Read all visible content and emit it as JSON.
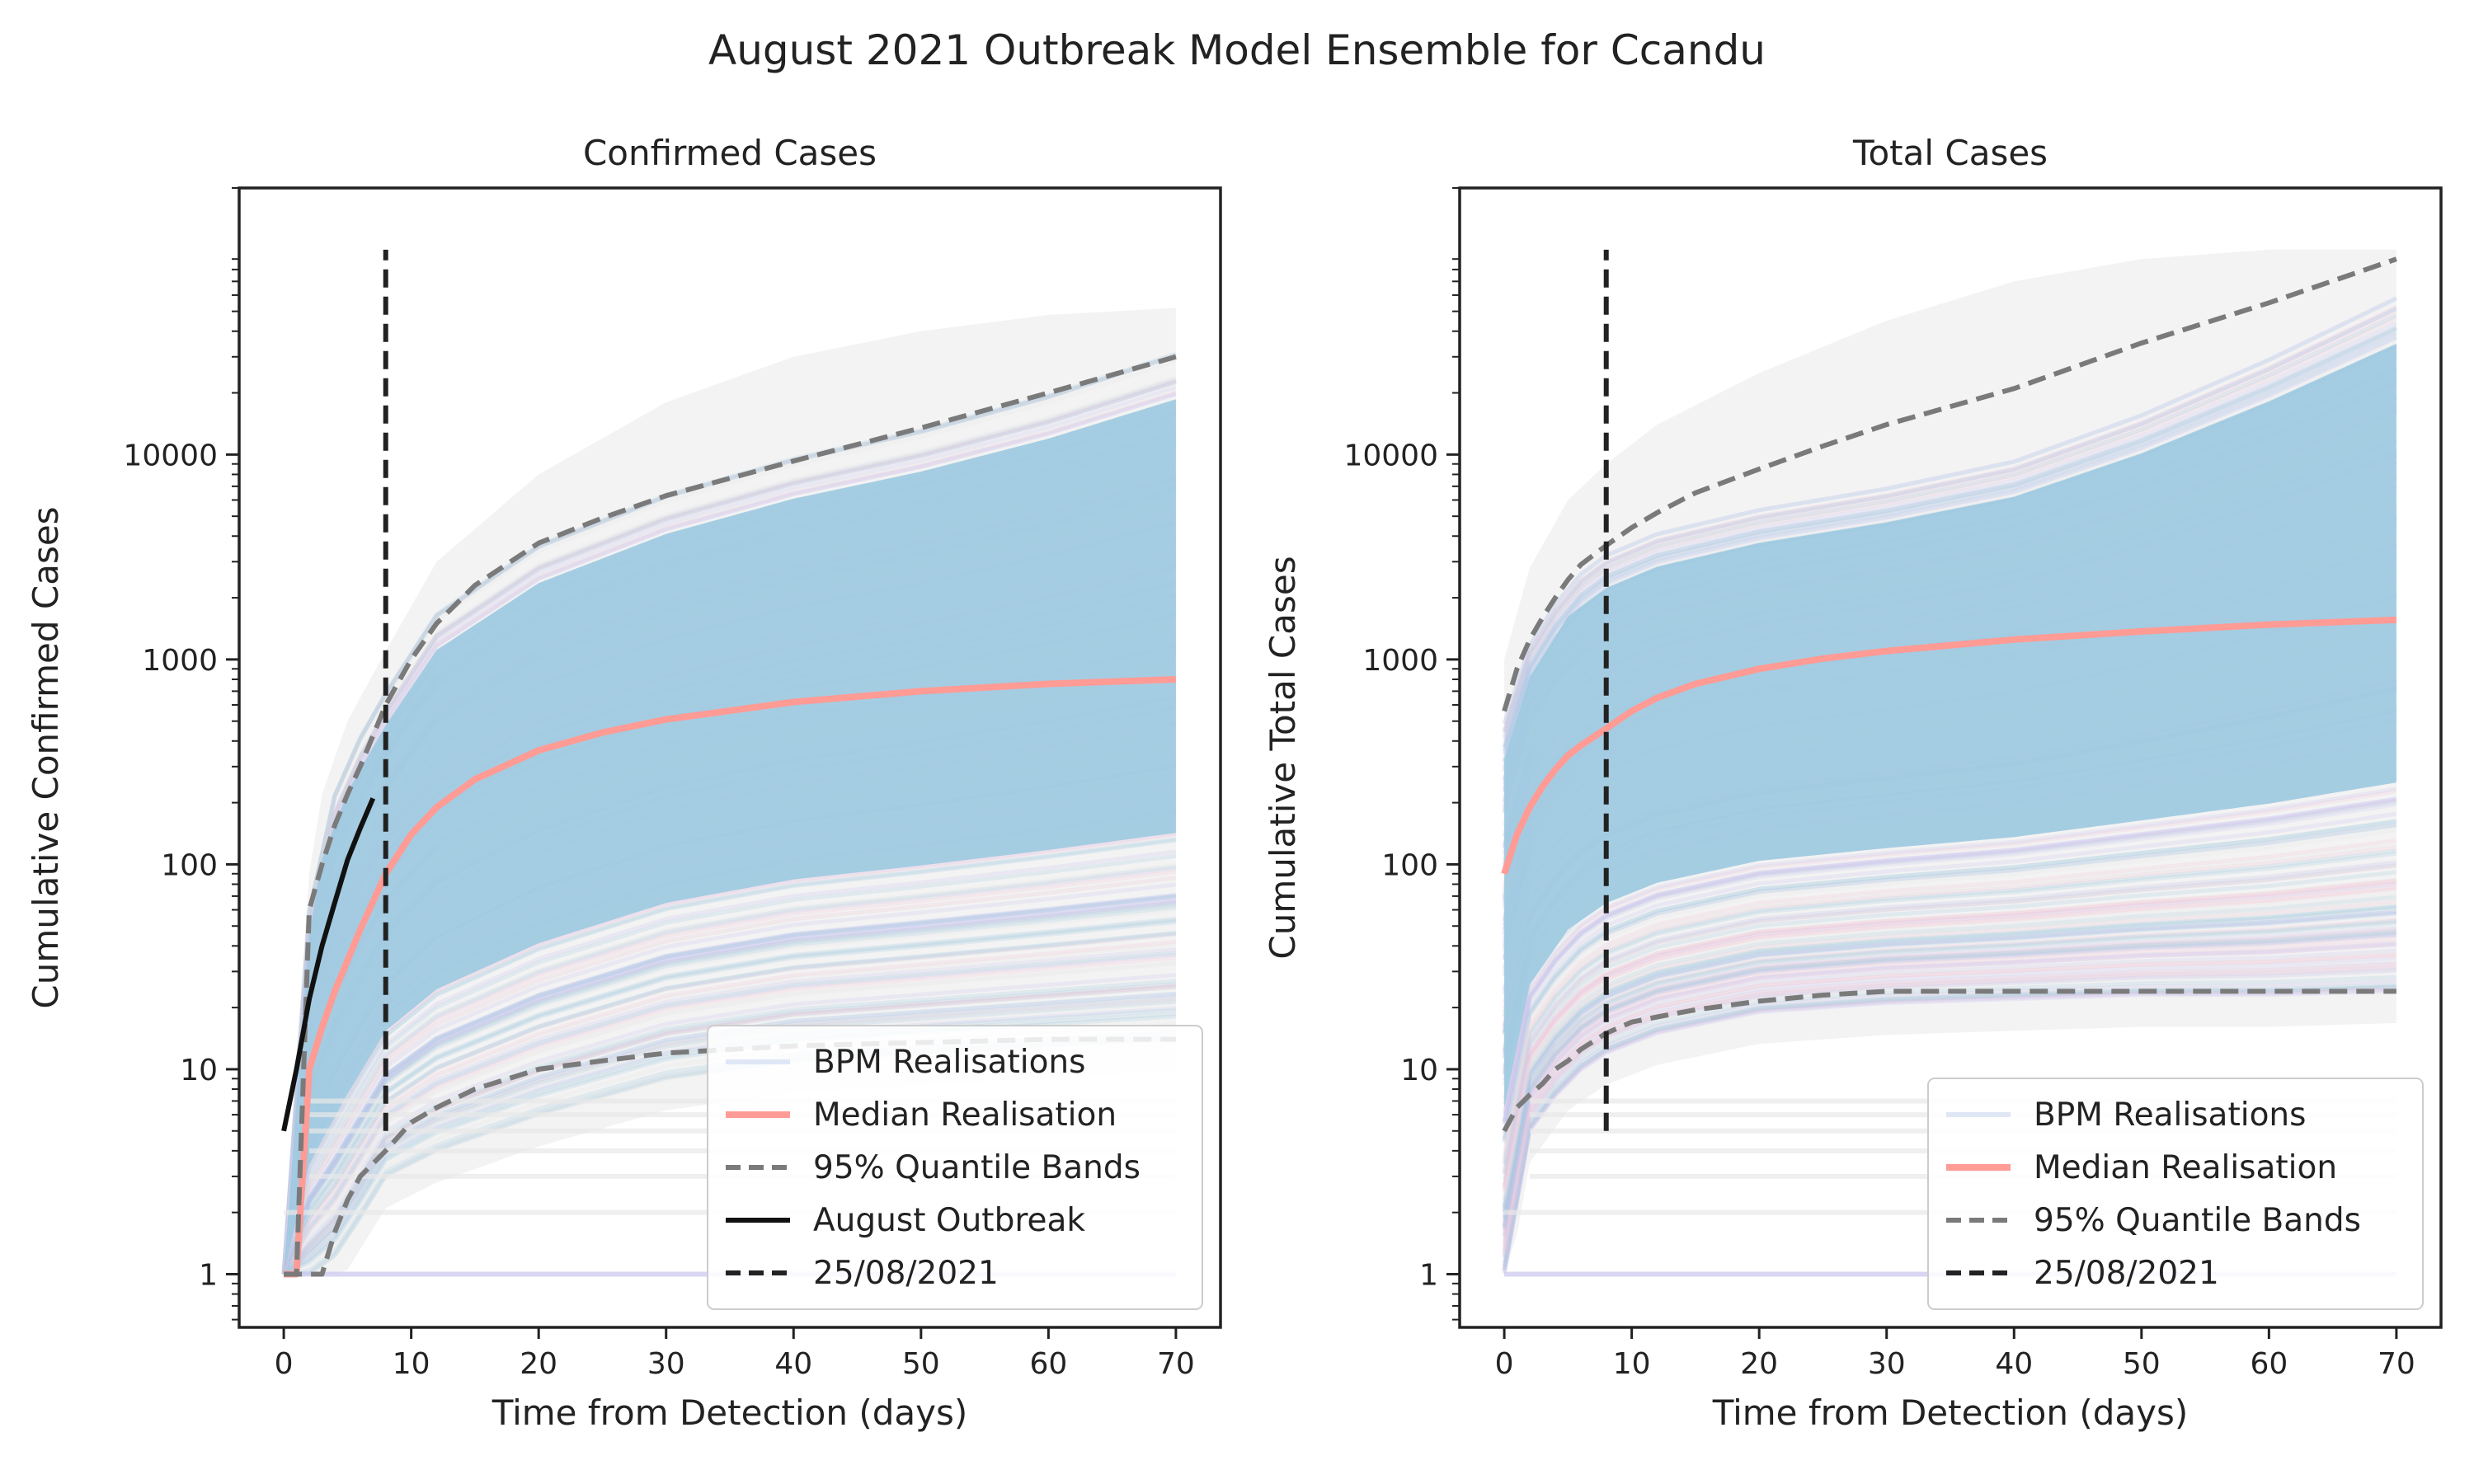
{
  "figure": {
    "title": "August 2021 Outbreak Model Ensemble for Ccandu"
  },
  "colors": {
    "realisation_blue": "#9ecae1",
    "realisation_pink": "#f4c2d4",
    "realisation_lavender": "#c9c6f0",
    "realisation_grey": "#e9e9e9",
    "median": "#ff9b95",
    "quantile": "#7a7a7a",
    "outbreak": "#111111",
    "date_line": "#222222"
  },
  "chart_data": [
    {
      "type": "line",
      "title": "Confirmed Cases",
      "xlabel": "Time from Detection (days)",
      "ylabel": "Cumulative Confirmed Cases",
      "yscale": "log",
      "xlim": [
        -3.5,
        73.5
      ],
      "ylim": [
        0.55,
        200000
      ],
      "xticks": [
        0,
        10,
        20,
        30,
        40,
        50,
        60,
        70
      ],
      "yticks": [
        1,
        10,
        100,
        1000,
        10000
      ],
      "ytick_labels": [
        "1",
        "10",
        "100",
        "1000",
        "10000"
      ],
      "grid": false,
      "legend_position": "lower-right",
      "legend": [
        "BPM Realisations",
        "Median Realisation",
        "95% Quantile Bands",
        "August Outbreak",
        "25/08/2021"
      ],
      "date_line": {
        "x": 8,
        "y_range": [
          5,
          100000
        ]
      },
      "realisation_band": {
        "x": [
          0,
          1,
          2,
          3,
          5,
          8,
          12,
          20,
          30,
          40,
          50,
          60,
          70
        ],
        "lower": [
          1,
          1,
          1,
          1,
          1.5,
          3,
          4,
          6,
          9,
          11,
          12,
          13,
          14
        ],
        "upper": [
          1,
          8,
          60,
          150,
          330,
          700,
          1700,
          3700,
          6500,
          9800,
          13500,
          20000,
          32000
        ],
        "extreme_upper": [
          1,
          12,
          90,
          220,
          500,
          1100,
          3000,
          8000,
          18000,
          30000,
          40000,
          48000,
          52000
        ]
      },
      "series": [
        {
          "name": "Median Realisation",
          "x": [
            0,
            1,
            2,
            3,
            4,
            5,
            6,
            8,
            10,
            12,
            15,
            20,
            25,
            30,
            40,
            50,
            60,
            70
          ],
          "values": [
            1,
            1,
            10,
            16,
            24,
            34,
            48,
            90,
            140,
            190,
            260,
            360,
            440,
            510,
            620,
            700,
            760,
            800
          ]
        },
        {
          "name": "95% Quantile Bands",
          "x": [
            0,
            1,
            2,
            3,
            4,
            5,
            6,
            8,
            10,
            12,
            15,
            20,
            25,
            30,
            40,
            50,
            60,
            70
          ],
          "values": [
            1,
            1,
            60,
            100,
            155,
            220,
            300,
            600,
            1000,
            1500,
            2300,
            3700,
            4900,
            6300,
            9300,
            13500,
            20000,
            30000
          ]
        },
        {
          "name": "95% Quantile Bands (lower)",
          "x": [
            0,
            1,
            2,
            3,
            4,
            5,
            6,
            8,
            10,
            12,
            15,
            20,
            25,
            30,
            40,
            50,
            60,
            70
          ],
          "values": [
            1,
            1,
            1,
            1,
            1.6,
            2.3,
            3,
            4,
            5.5,
            6.5,
            8,
            10,
            11,
            12,
            13,
            13.5,
            14,
            14
          ]
        },
        {
          "name": "August Outbreak",
          "x": [
            0,
            1,
            2,
            3,
            4,
            5,
            6,
            7
          ],
          "values": [
            5,
            10,
            22,
            40,
            65,
            105,
            150,
            210
          ]
        }
      ]
    },
    {
      "type": "line",
      "title": "Total Cases",
      "xlabel": "Time from Detection (days)",
      "ylabel": "Cumulative Total Cases",
      "yscale": "log",
      "xlim": [
        -3.5,
        73.5
      ],
      "ylim": [
        0.55,
        200000
      ],
      "xticks": [
        0,
        10,
        20,
        30,
        40,
        50,
        60,
        70
      ],
      "yticks": [
        1,
        10,
        100,
        1000,
        10000
      ],
      "ytick_labels": [
        "1",
        "10",
        "100",
        "1000",
        "10000"
      ],
      "grid": false,
      "legend_position": "lower-right",
      "legend": [
        "BPM Realisations",
        "Median Realisation",
        "95% Quantile Bands",
        "25/08/2021"
      ],
      "date_line": {
        "x": 8,
        "y_range": [
          5,
          100000
        ]
      },
      "realisation_band": {
        "x": [
          0,
          2,
          5,
          8,
          12,
          20,
          30,
          40,
          50,
          60,
          70
        ],
        "lower": [
          1,
          5,
          9,
          12,
          15,
          19,
          21,
          22,
          23,
          23,
          24
        ],
        "upper": [
          500,
          1200,
          2400,
          3300,
          4200,
          5500,
          7000,
          9500,
          16000,
          30000,
          60000
        ],
        "extreme_upper": [
          1000,
          2800,
          6000,
          9000,
          14000,
          25000,
          45000,
          70000,
          90000,
          100000,
          100000
        ]
      },
      "series": [
        {
          "name": "Median Realisation",
          "x": [
            0,
            1,
            2,
            3,
            4,
            5,
            6,
            8,
            10,
            12,
            15,
            20,
            25,
            30,
            40,
            50,
            60,
            70
          ],
          "values": [
            90,
            140,
            190,
            240,
            290,
            340,
            380,
            460,
            560,
            650,
            760,
            900,
            1010,
            1100,
            1250,
            1370,
            1480,
            1560
          ]
        },
        {
          "name": "95% Quantile Bands",
          "x": [
            0,
            1,
            2,
            3,
            4,
            5,
            6,
            8,
            10,
            12,
            15,
            20,
            25,
            30,
            40,
            50,
            60,
            70
          ],
          "values": [
            560,
            900,
            1250,
            1600,
            2000,
            2450,
            2900,
            3600,
            4400,
            5200,
            6500,
            8500,
            11000,
            14000,
            21000,
            35000,
            55000,
            90000
          ]
        },
        {
          "name": "95% Quantile Bands (lower)",
          "x": [
            0,
            1,
            2,
            3,
            4,
            5,
            6,
            8,
            10,
            12,
            15,
            20,
            25,
            30,
            40,
            50,
            60,
            70
          ],
          "values": [
            5,
            6.5,
            7.5,
            8.5,
            10,
            11,
            12.5,
            15,
            17,
            18,
            19.5,
            21.5,
            23,
            24,
            24,
            24,
            24,
            24
          ]
        }
      ]
    }
  ]
}
